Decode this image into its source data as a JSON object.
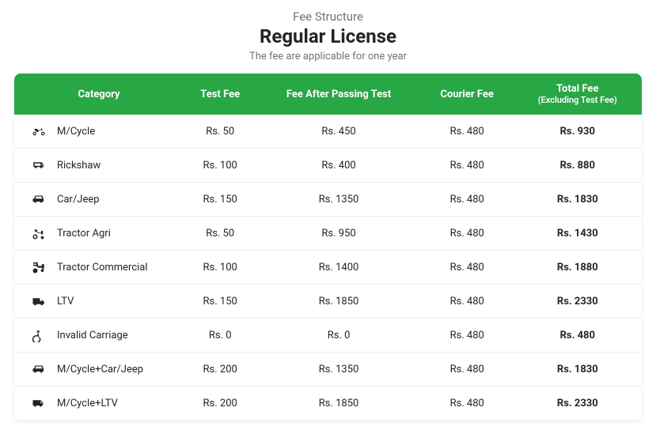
{
  "header": {
    "pretitle": "Fee Structure",
    "title": "Regular License",
    "subtitle": "The fee are applicable for one year"
  },
  "colors": {
    "header_bg": "#28a745",
    "header_text": "#ffffff",
    "muted": "#6c757d",
    "text": "#212529",
    "row_border": "#e9ecef",
    "icon": "#212529"
  },
  "table": {
    "columns": [
      {
        "label": "Category",
        "sub": ""
      },
      {
        "label": "Test Fee",
        "sub": ""
      },
      {
        "label": "Fee After Passing Test",
        "sub": ""
      },
      {
        "label": "Courier Fee",
        "sub": ""
      },
      {
        "label": "Total Fee",
        "sub": "(Excluding Test Fee)"
      }
    ],
    "rows": [
      {
        "icon": "motorcycle",
        "category": "M/Cycle",
        "test_fee": "Rs. 50",
        "after_fee": "Rs. 450",
        "courier_fee": "Rs. 480",
        "total": "Rs. 930"
      },
      {
        "icon": "rickshaw",
        "category": "Rickshaw",
        "test_fee": "Rs. 100",
        "after_fee": "Rs. 400",
        "courier_fee": "Rs. 480",
        "total": "Rs. 880"
      },
      {
        "icon": "car",
        "category": "Car/Jeep",
        "test_fee": "Rs. 150",
        "after_fee": "Rs. 1350",
        "courier_fee": "Rs. 480",
        "total": "Rs. 1830"
      },
      {
        "icon": "tractor",
        "category": "Tractor Agri",
        "test_fee": "Rs. 50",
        "after_fee": "Rs. 950",
        "courier_fee": "Rs. 480",
        "total": "Rs. 1430"
      },
      {
        "icon": "tractor-commercial",
        "category": "Tractor Commercial",
        "test_fee": "Rs. 100",
        "after_fee": "Rs. 1400",
        "courier_fee": "Rs. 480",
        "total": "Rs. 1880"
      },
      {
        "icon": "ltv",
        "category": "LTV",
        "test_fee": "Rs. 150",
        "after_fee": "Rs. 1850",
        "courier_fee": "Rs. 480",
        "total": "Rs. 2330"
      },
      {
        "icon": "wheelchair",
        "category": "Invalid Carriage",
        "test_fee": "Rs. 0",
        "after_fee": "Rs. 0",
        "courier_fee": "Rs. 480",
        "total": "Rs. 480"
      },
      {
        "icon": "car",
        "category": "M/Cycle+Car/Jeep",
        "test_fee": "Rs. 200",
        "after_fee": "Rs. 1350",
        "courier_fee": "Rs. 480",
        "total": "Rs. 1830"
      },
      {
        "icon": "van",
        "category": "M/Cycle+LTV",
        "test_fee": "Rs. 200",
        "after_fee": "Rs. 1850",
        "courier_fee": "Rs. 480",
        "total": "Rs. 2330"
      }
    ]
  }
}
